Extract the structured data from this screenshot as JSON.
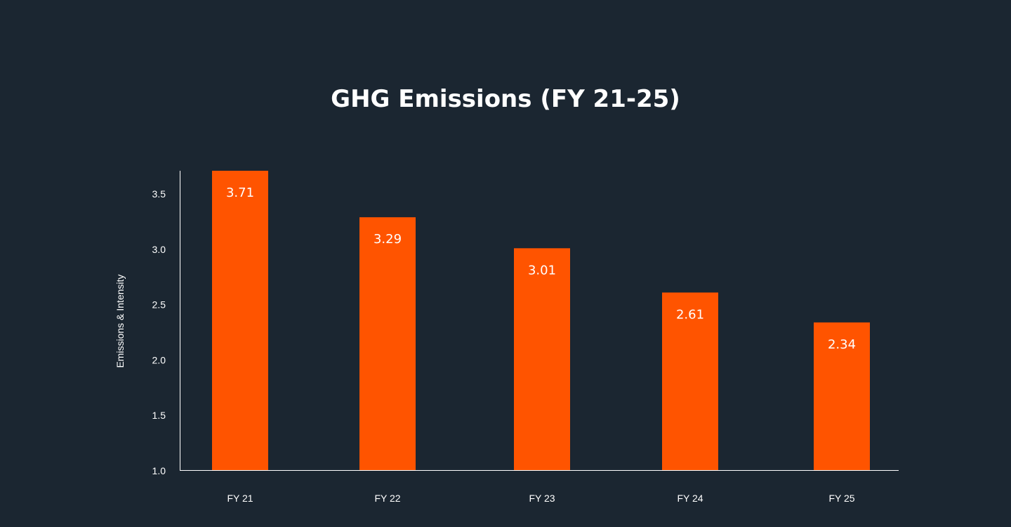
{
  "colors": {
    "background": "#1b2631",
    "bar": "#ff5400",
    "text": "#ffffff",
    "axis": "#ffffff"
  },
  "chart_data": {
    "type": "bar",
    "title": "GHG Emissions (FY 21-25)",
    "xlabel": "",
    "ylabel": "Emissions & Intensity",
    "categories": [
      "FY 21",
      "FY 22",
      "FY 23",
      "FY 24",
      "FY 25"
    ],
    "values": [
      3.71,
      3.29,
      3.01,
      2.61,
      2.34
    ],
    "data_labels": [
      "3.71",
      "3.29",
      "3.01",
      "2.61",
      "2.34"
    ],
    "yticks": [
      "1.0",
      "1.5",
      "2.0",
      "2.5",
      "3.0",
      "3.5"
    ],
    "ylim": [
      1.0,
      3.71
    ],
    "grid": false,
    "legend": "none"
  }
}
